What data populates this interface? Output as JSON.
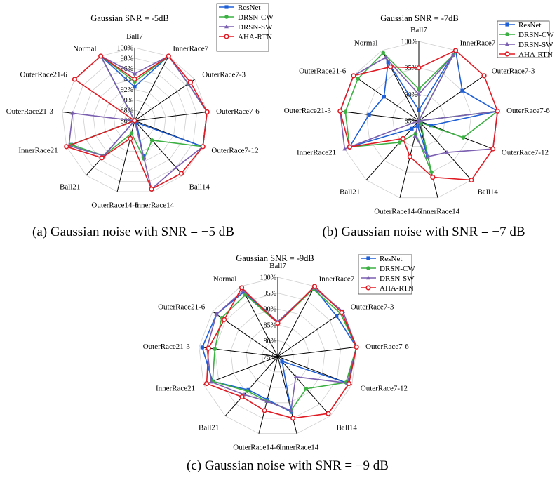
{
  "colors": {
    "ResNet": "#1f5fd6",
    "DRSN-CW": "#3cb043",
    "DRSN-SW": "#7b5fb0",
    "AHA-RTN": "#e01b24",
    "spoke": "#000000",
    "grid": "#cfcfcf"
  },
  "chart_data": [
    {
      "type": "radar",
      "id": "a",
      "title": "Gaussian SNR = -5dB",
      "caption": "(a) Gaussian noise with SNR = −5 dB",
      "categories": [
        "Ball7",
        "InnerRace7",
        "OuterRace7-3",
        "OuterRace7-6",
        "OuterRace7-12",
        "Ball14",
        "InnerRace14",
        "OuterRace14-6",
        "Ball21",
        "InnerRace21",
        "OuterRace21-3",
        "OuterRace21-6",
        "Normal"
      ],
      "rlim": [
        86,
        100
      ],
      "ticks": [
        "86%",
        "88%",
        "90%",
        "92%",
        "94%",
        "96%",
        "98%",
        "100%"
      ],
      "legend": [
        "ResNet",
        "DRSN-CW",
        "DRSN-SW",
        "AHA-RTN"
      ],
      "series": [
        {
          "name": "ResNet",
          "values": [
            92.5,
            100,
            98.5,
            100,
            100,
            86.5,
            93,
            86,
            95,
            99,
            86,
            86,
            100
          ]
        },
        {
          "name": "DRSN-CW",
          "values": [
            93.5,
            100,
            98.5,
            100,
            100,
            91,
            93.5,
            88.5,
            95,
            99,
            86,
            86,
            100
          ]
        },
        {
          "name": "DRSN-SW",
          "values": [
            95,
            100,
            98.5,
            100,
            100,
            98,
            99.5,
            86,
            95,
            99.5,
            98,
            86,
            100
          ]
        },
        {
          "name": "AHA-RTN",
          "values": [
            94,
            100,
            99,
            100,
            100,
            99.5,
            99.5,
            89.5,
            95.5,
            100,
            86,
            100,
            100
          ]
        }
      ]
    },
    {
      "type": "radar",
      "id": "b",
      "title": "Gaussian SNR = -7dB",
      "caption": "(b) Gaussian noise with SNR = −7 dB",
      "categories": [
        "Ball7",
        "InnerRace7",
        "OuterRace7-3",
        "OuterRace7-6",
        "OuterRace7-12",
        "Ball14",
        "InnerRace14",
        "OuterRace14-6",
        "Ball21",
        "InnerRace21",
        "OuterRace21-3",
        "OuterRace21-6",
        "Normal"
      ],
      "rlim": [
        85,
        100
      ],
      "ticks": [
        "85%",
        "90%",
        "95%",
        "100%"
      ],
      "legend": [
        "ResNet",
        "DRSN-CW",
        "DRSN-SW",
        "AHA-RTN"
      ],
      "series": [
        {
          "name": "ResNet",
          "values": [
            87,
            100,
            95,
            100,
            87.5,
            85.5,
            92,
            86,
            87,
            99,
            94.5,
            93,
            97.5
          ]
        },
        {
          "name": "DRSN-CW",
          "values": [
            91,
            99,
            85,
            100,
            94,
            85.5,
            95,
            87.5,
            90.5,
            99,
            99,
            99,
            99.5
          ]
        },
        {
          "name": "DRSN-SW",
          "values": [
            90,
            99,
            85,
            100,
            100,
            93,
            92,
            88,
            85,
            100,
            100,
            100,
            98.5
          ]
        },
        {
          "name": "AHA-RTN",
          "values": [
            95,
            100,
            100,
            100,
            100,
            100,
            96,
            92,
            89.5,
            99,
            100,
            100,
            96.5
          ]
        }
      ]
    },
    {
      "type": "radar",
      "id": "c",
      "title": "Gaussian SNR = -9dB",
      "caption": "(c) Gaussian noise with SNR = −9 dB",
      "categories": [
        "Ball7",
        "InnerRace7",
        "OuterRace7-3",
        "OuterRace7-6",
        "OuterRace7-12",
        "Ball14",
        "InnerRace14",
        "OuterRace14-6",
        "Ball21",
        "InnerRace21",
        "OuterRace21-3",
        "OuterRace21-6",
        "Normal"
      ],
      "rlim": [
        75,
        100
      ],
      "ticks": [
        "75%",
        "80%",
        "85%",
        "90%",
        "95%",
        "100%"
      ],
      "legend": [
        "ResNet",
        "DRSN-CW",
        "DRSN-SW",
        "AHA-RTN"
      ],
      "series": [
        {
          "name": "ResNet",
          "values": [
            85.5,
            99.5,
            97.5,
            100,
            98.5,
            77,
            93,
            89,
            89,
            97,
            99,
            98.5,
            98
          ]
        },
        {
          "name": "DRSN-CW",
          "values": [
            85.5,
            99,
            99,
            100,
            98,
            88.5,
            92.5,
            89.5,
            89.5,
            97,
            95,
            96.5,
            97
          ]
        },
        {
          "name": "DRSN-SW",
          "values": [
            86,
            99.5,
            100,
            100,
            98.5,
            83.5,
            92.5,
            89.5,
            91,
            97.5,
            97.5,
            98.5,
            98.5
          ]
        },
        {
          "name": "AHA-RTN",
          "values": [
            85.5,
            100,
            99.5,
            100,
            99,
            99,
            95,
            92.5,
            92,
            99,
            97,
            95.5,
            99.5
          ]
        }
      ]
    }
  ]
}
